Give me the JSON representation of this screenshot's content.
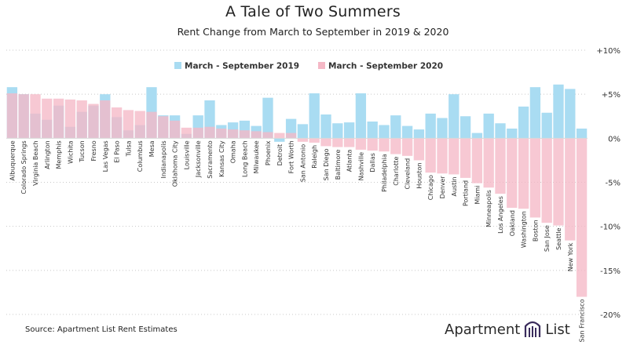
{
  "chart_data": {
    "type": "bar",
    "title": "A Tale of Two Summers",
    "subtitle": "Rent Change from March to September in 2019 & 2020",
    "categories": [
      "Albuquerque",
      "Colorado Springs",
      "Virginia Beach",
      "Arlington",
      "Memphis",
      "Wichita",
      "Tucson",
      "Fresno",
      "Las Vegas",
      "El Paso",
      "Tulsa",
      "Columbus",
      "Mesa",
      "Indianapolis",
      "Oklahoma City",
      "Louisville",
      "Jacksonville",
      "Sacramento",
      "Kansas City",
      "Omaha",
      "Long Beach",
      "Milwaukee",
      "Phoenix",
      "Detroit",
      "Fort Worth",
      "San Antonio",
      "Raleigh",
      "San Diego",
      "Baltimore",
      "Atlanta",
      "Nashville",
      "Dallas",
      "Philadelphia",
      "Charlotte",
      "Cleveland",
      "Houston",
      "Chicago",
      "Denver",
      "Austin",
      "Portland",
      "Miami",
      "Minneapolis",
      "Los Angeles",
      "Oakland",
      "Washington",
      "Boston",
      "San Jose",
      "Seattle",
      "New York",
      "San Francisco"
    ],
    "series": [
      {
        "name": "March - September 2019",
        "color": "#a9dcf2",
        "values": [
          5.8,
          5.0,
          2.8,
          2.1,
          3.7,
          1.3,
          3.0,
          3.7,
          5.0,
          2.4,
          0.9,
          1.5,
          5.8,
          2.6,
          2.6,
          0.5,
          2.6,
          4.3,
          1.5,
          1.8,
          2.0,
          1.4,
          4.6,
          -0.4,
          2.2,
          1.6,
          5.1,
          2.7,
          1.7,
          1.8,
          5.1,
          1.9,
          1.5,
          2.6,
          1.4,
          1.0,
          2.8,
          2.3,
          5.0,
          2.5,
          0.6,
          2.8,
          1.7,
          1.1,
          3.6,
          5.8,
          2.9,
          6.1,
          5.6,
          1.1
        ]
      },
      {
        "name": "March - September 2020",
        "color": "#f5b8c6",
        "values": [
          5.1,
          5.0,
          5.0,
          4.5,
          4.5,
          4.4,
          4.3,
          3.9,
          4.3,
          3.5,
          3.2,
          3.1,
          3.0,
          2.5,
          2.0,
          1.2,
          1.2,
          1.3,
          1.1,
          1.0,
          0.9,
          0.8,
          0.7,
          0.6,
          0.6,
          -0.4,
          -0.5,
          -0.9,
          -1.0,
          -1.0,
          -1.3,
          -1.4,
          -1.5,
          -1.8,
          -2.0,
          -2.5,
          -3.9,
          -4.0,
          -4.1,
          -4.5,
          -5.1,
          -5.6,
          -6.3,
          -7.9,
          -8.0,
          -9.0,
          -9.6,
          -9.9,
          -11.6,
          -18.0
        ]
      }
    ],
    "ylim": [
      -20,
      10
    ],
    "yticks": [
      10,
      5,
      0,
      -5,
      -10,
      -15,
      -20
    ],
    "ytick_labels": [
      "+10%",
      "+5%",
      "0%",
      "-5%",
      "-10%",
      "-15%",
      "-20%"
    ],
    "legend_position": "top-center",
    "grid": "horizontal dotted"
  },
  "footer": {
    "source": "Source: Apartment List Rent Estimates",
    "brand_left": "Apartment",
    "brand_right": "List"
  }
}
